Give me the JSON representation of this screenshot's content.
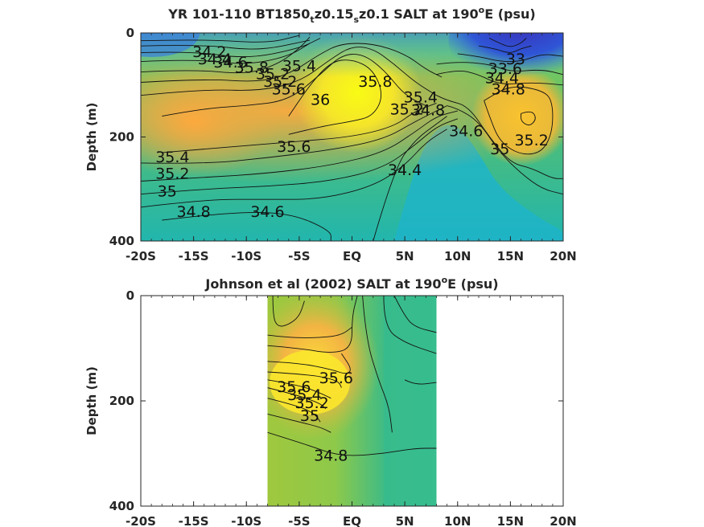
{
  "chart_data": [
    {
      "type": "contour",
      "title_parts": [
        "YR 101-110 BT1850",
        "t",
        "z0.15",
        "s",
        "z0.1 SALT at 190",
        "o",
        "E (psu)"
      ],
      "title": "YR 101-110 BT1850_tz0.15_sz0.1 SALT at 190°E (psu)",
      "xlabel": "",
      "ylabel": "Depth (m)",
      "x_ticks": [
        "-20S",
        "-15S",
        "-10S",
        "-5S",
        "EQ",
        "5N",
        "10N",
        "15N",
        "20N"
      ],
      "y_ticks": [
        "0",
        "200",
        "400"
      ],
      "xlim": [
        -20,
        20
      ],
      "ylim": [
        0,
        400
      ],
      "y_reversed": true,
      "data_extent_x": [
        -20,
        20
      ],
      "colormap": "parula",
      "contour_labels": [
        {
          "x": -13.5,
          "y": 38,
          "text": "34.2"
        },
        {
          "x": -13.0,
          "y": 52,
          "text": "34.4"
        },
        {
          "x": -11.5,
          "y": 58,
          "text": "34.6"
        },
        {
          "x": -9.5,
          "y": 68,
          "text": "35.8"
        },
        {
          "x": -7.5,
          "y": 80,
          "text": "35.2"
        },
        {
          "x": -6.8,
          "y": 95,
          "text": "35.2"
        },
        {
          "x": -5.0,
          "y": 65,
          "text": "35.4"
        },
        {
          "x": -6.0,
          "y": 110,
          "text": "35.6"
        },
        {
          "x": -3.0,
          "y": 130,
          "text": "36"
        },
        {
          "x": 2.2,
          "y": 95,
          "text": "35.8"
        },
        {
          "x": 6.5,
          "y": 125,
          "text": "35.4"
        },
        {
          "x": 5.2,
          "y": 148,
          "text": "35.2"
        },
        {
          "x": 7.2,
          "y": 150,
          "text": "34.8"
        },
        {
          "x": 10.8,
          "y": 190,
          "text": "34.6"
        },
        {
          "x": -5.5,
          "y": 220,
          "text": "35.6"
        },
        {
          "x": -17.0,
          "y": 240,
          "text": "35.4"
        },
        {
          "x": -17.0,
          "y": 272,
          "text": "35.2"
        },
        {
          "x": -17.5,
          "y": 306,
          "text": "35"
        },
        {
          "x": -15.0,
          "y": 345,
          "text": "34.8"
        },
        {
          "x": -8.0,
          "y": 345,
          "text": "34.6"
        },
        {
          "x": 5.0,
          "y": 265,
          "text": "34.4"
        },
        {
          "x": 15.5,
          "y": 52,
          "text": "33"
        },
        {
          "x": 14.5,
          "y": 70,
          "text": "33.6"
        },
        {
          "x": 14.2,
          "y": 88,
          "text": "34.4"
        },
        {
          "x": 14.8,
          "y": 110,
          "text": "34.8"
        },
        {
          "x": 14.0,
          "y": 225,
          "text": "35"
        },
        {
          "x": 17.0,
          "y": 208,
          "text": "35.2"
        }
      ]
    },
    {
      "type": "contour",
      "title_parts": [
        "Johnson et al (2002) SALT at 190",
        "o",
        "E (psu)"
      ],
      "title": "Johnson et al (2002) SALT at 190°E (psu)",
      "xlabel": "",
      "ylabel": "Depth (m)",
      "x_ticks": [
        "-20S",
        "-15S",
        "-10S",
        "-5S",
        "EQ",
        "5N",
        "10N",
        "15N",
        "20N"
      ],
      "y_ticks": [
        "0",
        "200",
        "400"
      ],
      "xlim": [
        -20,
        20
      ],
      "ylim": [
        0,
        400
      ],
      "y_reversed": true,
      "data_extent_x": [
        -8,
        8
      ],
      "colormap": "parula",
      "contour_labels": [
        {
          "x": -5.5,
          "y": 175,
          "text": "35.6"
        },
        {
          "x": -4.5,
          "y": 190,
          "text": "35.4"
        },
        {
          "x": -3.8,
          "y": 205,
          "text": "35.2"
        },
        {
          "x": -4.0,
          "y": 230,
          "text": "35"
        },
        {
          "x": -1.5,
          "y": 158,
          "text": "35.6"
        },
        {
          "x": -2.0,
          "y": 305,
          "text": "34.8"
        }
      ]
    }
  ]
}
